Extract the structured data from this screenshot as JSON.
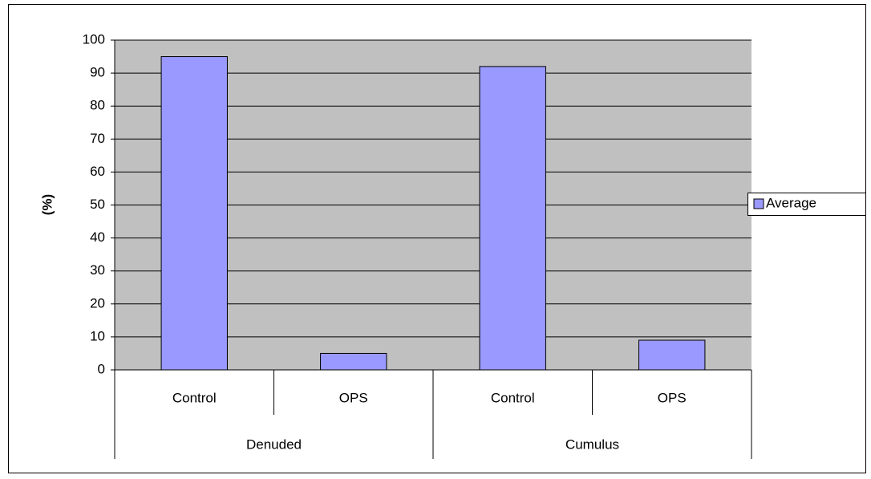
{
  "chart_data": {
    "type": "bar",
    "y_label": "(%)",
    "groups": [
      {
        "label": "Denuded",
        "categories": [
          "Control",
          "OPS"
        ]
      },
      {
        "label": "Cumulus",
        "categories": [
          "Control",
          "OPS"
        ]
      }
    ],
    "series": [
      {
        "name": "Average",
        "color": "#9999ff",
        "values": [
          95,
          5,
          92,
          9
        ]
      }
    ],
    "ylim": [
      0,
      100
    ],
    "yticks": [
      0,
      10,
      20,
      30,
      40,
      50,
      60,
      70,
      80,
      90,
      100
    ],
    "grid": true,
    "plot_background": "#c0c0c0",
    "legend": "right"
  }
}
